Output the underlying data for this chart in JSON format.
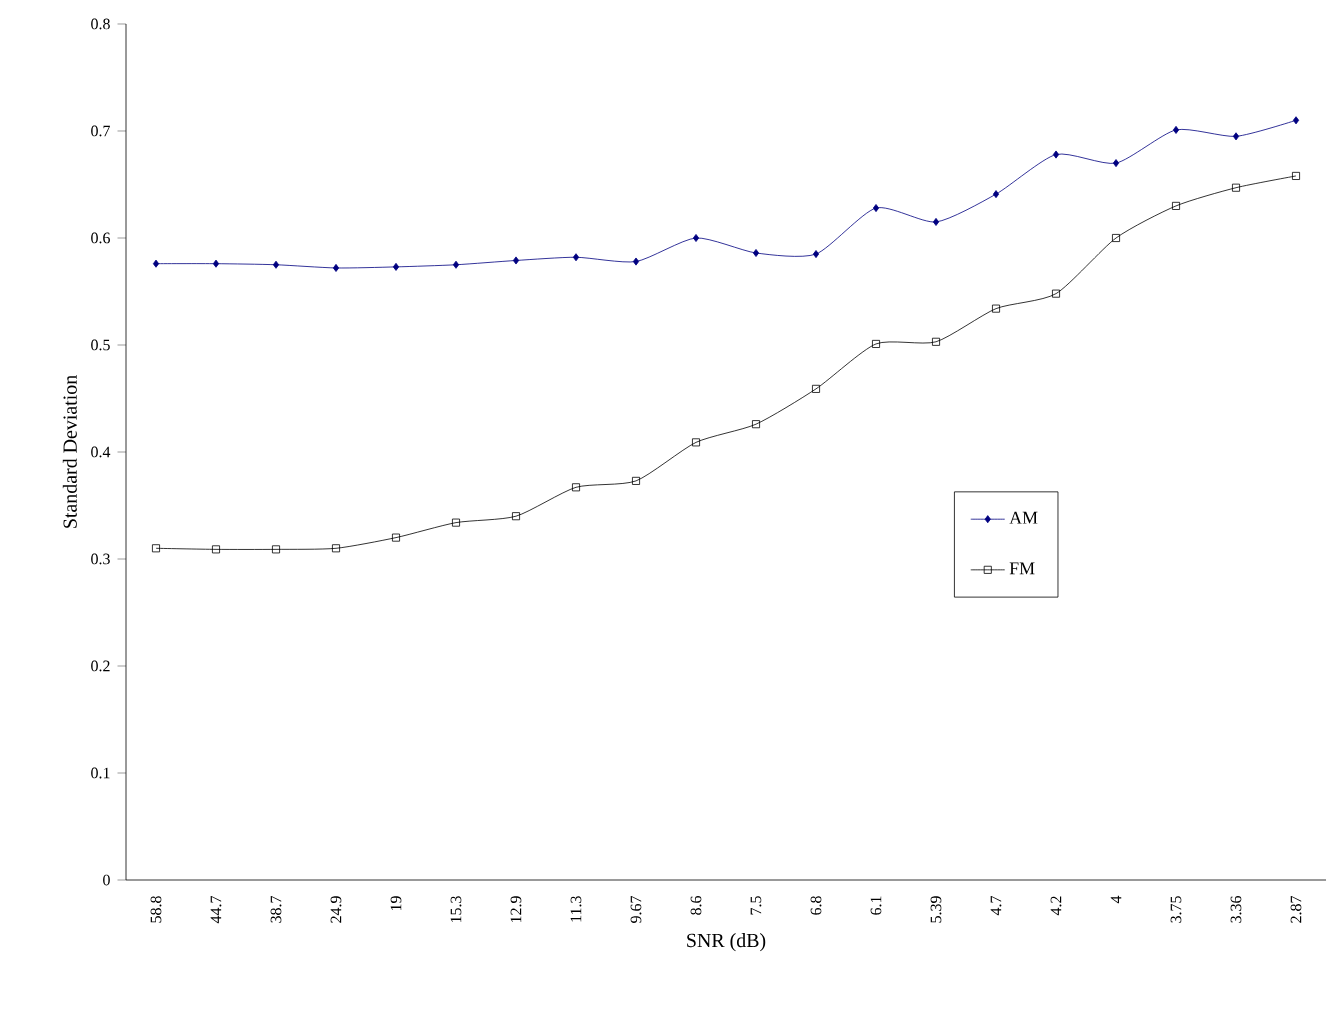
{
  "chart_data": {
    "type": "line",
    "xlabel": "SNR (dB)",
    "ylabel": "Standard Deviation",
    "categories": [
      "58.8",
      "44.7",
      "38.7",
      "24.9",
      "19",
      "15.3",
      "12.9",
      "11.3",
      "9.67",
      "8.6",
      "7.5",
      "6.8",
      "6.1",
      "5.39",
      "4.7",
      "4.2",
      "4",
      "3.75",
      "3.36",
      "2.87"
    ],
    "series": [
      {
        "name": "AM",
        "color": "#000080",
        "marker": "diamond",
        "values": [
          0.576,
          0.576,
          0.575,
          0.572,
          0.573,
          0.575,
          0.579,
          0.582,
          0.578,
          0.6,
          0.586,
          0.585,
          0.628,
          0.615,
          0.641,
          0.678,
          0.67,
          0.701,
          0.695,
          0.71
        ]
      },
      {
        "name": "FM",
        "color": "#000000",
        "marker": "square",
        "values": [
          0.31,
          0.309,
          0.309,
          0.31,
          0.32,
          0.334,
          0.34,
          0.367,
          0.373,
          0.409,
          0.426,
          0.459,
          0.501,
          0.503,
          0.534,
          0.548,
          0.6,
          0.63,
          0.647,
          0.658
        ]
      }
    ],
    "ylim": [
      0,
      0.8
    ],
    "yticks": [
      0,
      0.1,
      0.2,
      0.3,
      0.4,
      0.5,
      0.6,
      0.7,
      0.8
    ],
    "grid": false,
    "legend": "right",
    "line_style": "solid"
  }
}
